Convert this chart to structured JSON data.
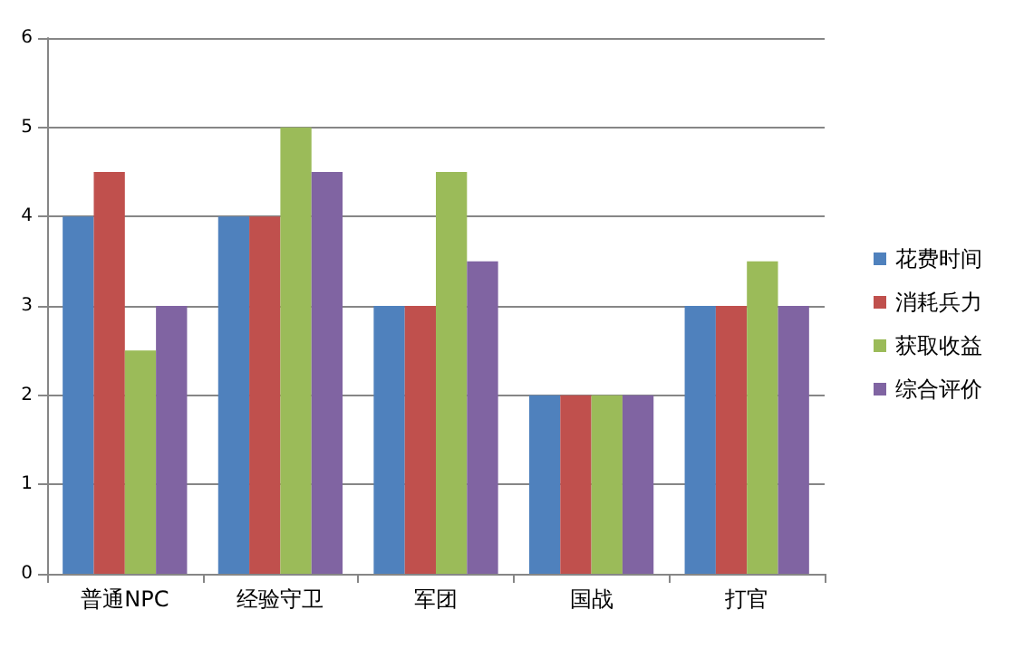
{
  "chart_data": {
    "type": "bar",
    "categories": [
      "普通NPC",
      "经验守卫",
      "军团",
      "国战",
      "打官"
    ],
    "series": [
      {
        "name": "花费时间",
        "color": "#4f81bd",
        "values": [
          4,
          4,
          3,
          2,
          3
        ]
      },
      {
        "name": "消耗兵力",
        "color": "#c0504d",
        "values": [
          4.5,
          4,
          3,
          2,
          3
        ]
      },
      {
        "name": "获取收益",
        "color": "#9bbb59",
        "values": [
          2.5,
          5,
          4.5,
          2,
          3.5
        ]
      },
      {
        "name": "综合评价",
        "color": "#8064a2",
        "values": [
          3,
          4.5,
          3.5,
          2,
          3
        ]
      }
    ],
    "ylim": [
      0,
      6
    ],
    "yticks": [
      0,
      1,
      2,
      3,
      4,
      5,
      6
    ],
    "grid": "y",
    "legend": "right"
  }
}
